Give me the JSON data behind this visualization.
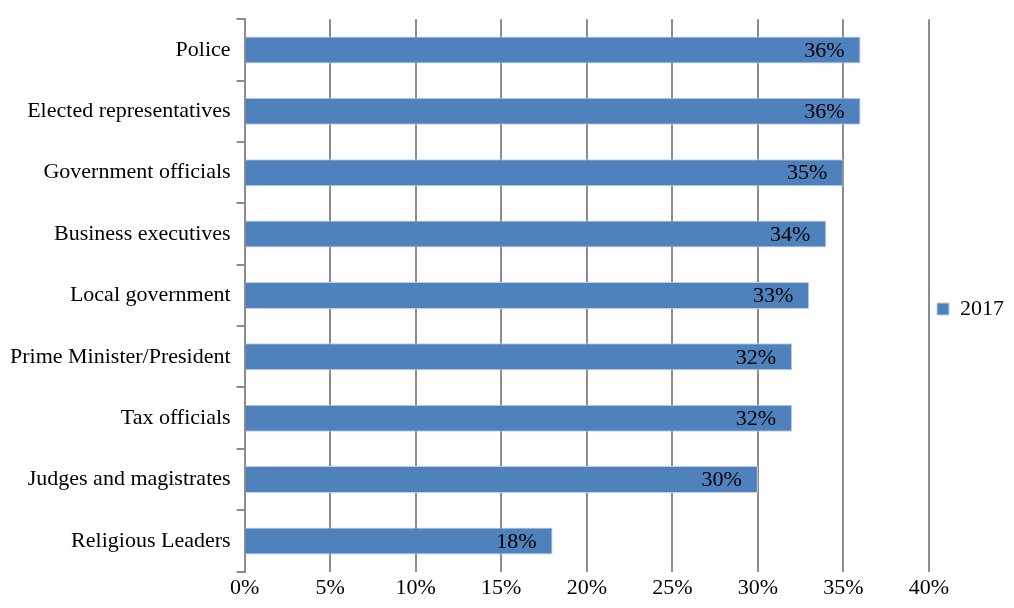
{
  "chart_data": {
    "type": "bar",
    "orientation": "horizontal",
    "categories": [
      "Police",
      "Elected representatives",
      "Government officials",
      "Business executives",
      "Local government",
      "Prime Minister/President",
      "Tax officials",
      "Judges and magistrates",
      "Religious Leaders"
    ],
    "series": [
      {
        "name": "2017",
        "color": "#4f81bd",
        "values": [
          36,
          36,
          35,
          34,
          33,
          32,
          32,
          30,
          18
        ],
        "value_labels": [
          "36%",
          "36%",
          "35%",
          "34%",
          "33%",
          "32%",
          "32%",
          "30%",
          "18%"
        ]
      }
    ],
    "xlim": [
      0,
      40
    ],
    "xticks": [
      {
        "value": 0,
        "label": "0%"
      },
      {
        "value": 5,
        "label": "5%"
      },
      {
        "value": 10,
        "label": "10%"
      },
      {
        "value": 15,
        "label": "15%"
      },
      {
        "value": 20,
        "label": "20%"
      },
      {
        "value": 25,
        "label": "25%"
      },
      {
        "value": 30,
        "label": "30%"
      },
      {
        "value": 35,
        "label": "35%"
      },
      {
        "value": 40,
        "label": "40%"
      }
    ],
    "grid": "x",
    "legend": "right"
  }
}
